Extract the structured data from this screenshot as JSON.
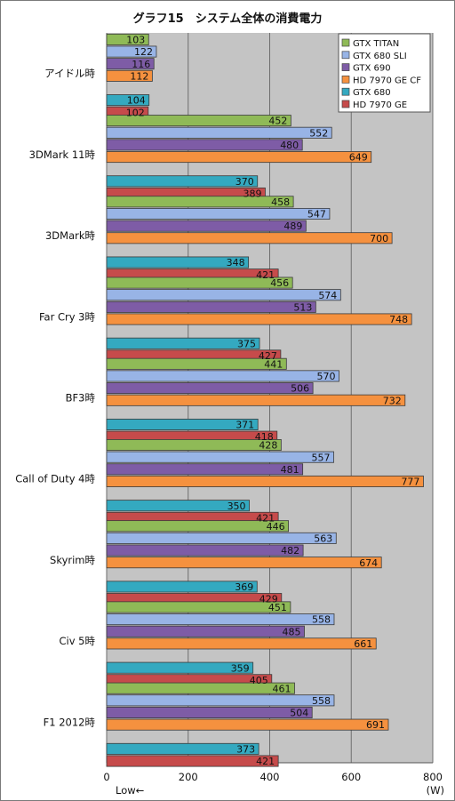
{
  "chart_data": {
    "type": "bar",
    "orientation": "horizontal",
    "title": "グラフ15　システム全体の消費電力",
    "xlim": [
      0,
      800
    ],
    "xticks": [
      "0",
      "200",
      "400",
      "600",
      "800"
    ],
    "unit_label": "(W)",
    "direction_label": "Low←",
    "grid": true,
    "legend_position": "top-right",
    "categories": [
      "アイドル時",
      "3DMark 11時",
      "3DMark時",
      "Far Cry 3時",
      "BF3時",
      "Call of Duty 4時",
      "Skyrim時",
      "Civ 5時",
      "F1 2012時"
    ],
    "series": [
      {
        "name": "GTX TITAN",
        "color": "#8fba57",
        "values": [
          103,
          452,
          458,
          456,
          441,
          428,
          446,
          451,
          461
        ]
      },
      {
        "name": "GTX 680 SLI",
        "color": "#98b4e6",
        "values": [
          122,
          552,
          547,
          574,
          570,
          557,
          563,
          558,
          558
        ]
      },
      {
        "name": "GTX 690",
        "color": "#7e5ca6",
        "values": [
          116,
          480,
          489,
          513,
          506,
          481,
          482,
          485,
          504
        ]
      },
      {
        "name": "HD 7970 GE CF",
        "color": "#f5913f",
        "values": [
          112,
          649,
          700,
          748,
          732,
          777,
          674,
          661,
          691
        ]
      },
      {
        "name": "GTX 680",
        "color": "#34a9c0",
        "values": [
          104,
          370,
          348,
          375,
          371,
          350,
          369,
          359,
          373
        ]
      },
      {
        "name": "HD 7970 GE",
        "color": "#c64b4b",
        "values": [
          102,
          389,
          421,
          427,
          418,
          421,
          429,
          405,
          421
        ]
      }
    ]
  }
}
